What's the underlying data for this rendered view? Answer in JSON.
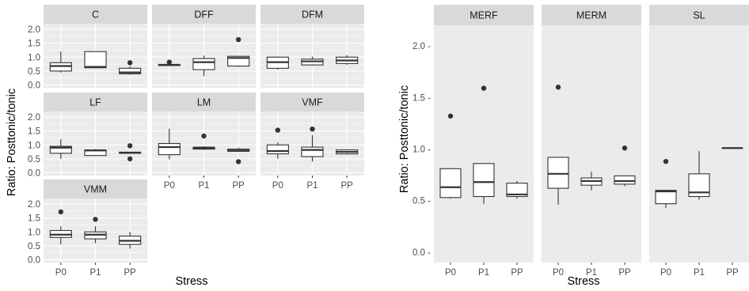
{
  "chart_data": [
    {
      "type": "boxplot",
      "facet": "wrap",
      "xlabel": "Stress",
      "ylabel": "Ratio: Posttonic/tonic",
      "categories": [
        "P0",
        "P1",
        "PP"
      ],
      "y_ticks": [
        0.0,
        0.5,
        1.0,
        1.5,
        2.0
      ],
      "y_tick_labels": [
        "0.0",
        "0.5",
        "1.0",
        "1.5",
        "2.0"
      ],
      "ylim": [
        -0.1,
        2.2
      ],
      "grid": true,
      "panels": [
        {
          "title": "C",
          "boxes": [
            {
              "category": "P0",
              "whisker_low": 0.45,
              "q1": 0.5,
              "median": 0.68,
              "q3": 0.8,
              "whisker_high": 1.2,
              "outliers": []
            },
            {
              "category": "P1",
              "whisker_low": 0.6,
              "q1": 0.62,
              "median": 0.65,
              "q3": 1.2,
              "whisker_high": 1.2,
              "outliers": []
            },
            {
              "category": "PP",
              "whisker_low": 0.37,
              "q1": 0.4,
              "median": 0.45,
              "q3": 0.6,
              "whisker_high": 0.67,
              "outliers": [
                0.8
              ]
            }
          ]
        },
        {
          "title": "DFF",
          "boxes": [
            {
              "category": "P0",
              "whisker_low": 0.68,
              "q1": 0.7,
              "median": 0.72,
              "q3": 0.74,
              "whisker_high": 0.76,
              "outliers": [
                0.82
              ]
            },
            {
              "category": "P1",
              "whisker_low": 0.32,
              "q1": 0.55,
              "median": 0.82,
              "q3": 0.95,
              "whisker_high": 1.05,
              "outliers": []
            },
            {
              "category": "PP",
              "whisker_low": 0.65,
              "q1": 0.68,
              "median": 0.97,
              "q3": 1.03,
              "whisker_high": 1.05,
              "outliers": [
                1.63
              ]
            }
          ]
        },
        {
          "title": "DFM",
          "boxes": [
            {
              "category": "P0",
              "whisker_low": 0.55,
              "q1": 0.6,
              "median": 0.82,
              "q3": 1.0,
              "whisker_high": 1.02,
              "outliers": []
            },
            {
              "category": "P1",
              "whisker_low": 0.7,
              "q1": 0.72,
              "median": 0.85,
              "q3": 0.93,
              "whisker_high": 1.02,
              "outliers": []
            },
            {
              "category": "PP",
              "whisker_low": 0.72,
              "q1": 0.77,
              "median": 0.88,
              "q3": 1.0,
              "whisker_high": 1.07,
              "outliers": []
            }
          ]
        },
        {
          "title": "LF",
          "boxes": [
            {
              "category": "P0",
              "whisker_low": 0.5,
              "q1": 0.7,
              "median": 0.9,
              "q3": 0.95,
              "whisker_high": 1.2,
              "outliers": []
            },
            {
              "category": "P1",
              "whisker_low": 0.6,
              "q1": 0.62,
              "median": 0.8,
              "q3": 0.82,
              "whisker_high": 0.85,
              "outliers": []
            },
            {
              "category": "PP",
              "whisker_low": 0.68,
              "q1": 0.7,
              "median": 0.72,
              "q3": 0.74,
              "whisker_high": 0.75,
              "outliers": [
                0.97,
                0.5
              ]
            }
          ]
        },
        {
          "title": "LM",
          "boxes": [
            {
              "category": "P0",
              "whisker_low": 0.48,
              "q1": 0.65,
              "median": 0.92,
              "q3": 1.05,
              "whisker_high": 1.58,
              "outliers": []
            },
            {
              "category": "P1",
              "whisker_low": 0.82,
              "q1": 0.85,
              "median": 0.88,
              "q3": 0.92,
              "whisker_high": 0.95,
              "outliers": [
                1.32
              ]
            },
            {
              "category": "PP",
              "whisker_low": 0.75,
              "q1": 0.77,
              "median": 0.8,
              "q3": 0.85,
              "whisker_high": 0.9,
              "outliers": [
                0.4
              ]
            }
          ]
        },
        {
          "title": "VMF",
          "boxes": [
            {
              "category": "P0",
              "whisker_low": 0.5,
              "q1": 0.68,
              "median": 0.78,
              "q3": 1.0,
              "whisker_high": 1.1,
              "outliers": [
                1.53
              ]
            },
            {
              "category": "P1",
              "whisker_low": 0.4,
              "q1": 0.58,
              "median": 0.82,
              "q3": 0.92,
              "whisker_high": 1.35,
              "outliers": [
                1.57
              ]
            },
            {
              "category": "PP",
              "whisker_low": 0.65,
              "q1": 0.68,
              "median": 0.75,
              "q3": 0.82,
              "whisker_high": 0.85,
              "outliers": []
            }
          ]
        },
        {
          "title": "VMM",
          "boxes": [
            {
              "category": "P0",
              "whisker_low": 0.55,
              "q1": 0.8,
              "median": 0.9,
              "q3": 1.05,
              "whisker_high": 1.2,
              "outliers": [
                1.72
              ]
            },
            {
              "category": "P1",
              "whisker_low": 0.6,
              "q1": 0.75,
              "median": 0.9,
              "q3": 1.0,
              "whisker_high": 1.2,
              "outliers": [
                1.45
              ]
            },
            {
              "category": "PP",
              "whisker_low": 0.4,
              "q1": 0.55,
              "median": 0.68,
              "q3": 0.85,
              "whisker_high": 1.0,
              "outliers": []
            }
          ]
        }
      ]
    },
    {
      "type": "boxplot",
      "facet": "grid",
      "xlabel": "Stress",
      "ylabel": "Ratio: Posttonic/tonic",
      "categories": [
        "P0",
        "P1",
        "PP"
      ],
      "y_ticks": [
        0.0,
        0.5,
        1.0,
        1.5,
        2.0
      ],
      "y_tick_labels": [
        "0.0 -",
        "0.5 -",
        "1.0 -",
        "1.5 -",
        "2.0 -"
      ],
      "ylim": [
        -0.1,
        2.2
      ],
      "grid": false,
      "panels": [
        {
          "title": "MERF",
          "boxes": [
            {
              "category": "P0",
              "whisker_low": 0.52,
              "q1": 0.53,
              "median": 0.63,
              "q3": 0.81,
              "whisker_high": 0.81,
              "outliers": [
                1.32
              ]
            },
            {
              "category": "P1",
              "whisker_low": 0.47,
              "q1": 0.54,
              "median": 0.68,
              "q3": 0.86,
              "whisker_high": 0.86,
              "outliers": [
                1.59
              ]
            },
            {
              "category": "PP",
              "whisker_low": 0.52,
              "q1": 0.54,
              "median": 0.56,
              "q3": 0.67,
              "whisker_high": 0.69,
              "outliers": []
            }
          ]
        },
        {
          "title": "MERM",
          "boxes": [
            {
              "category": "P0",
              "whisker_low": 0.46,
              "q1": 0.62,
              "median": 0.76,
              "q3": 0.92,
              "whisker_high": 0.92,
              "outliers": [
                1.6
              ]
            },
            {
              "category": "P1",
              "whisker_low": 0.6,
              "q1": 0.65,
              "median": 0.69,
              "q3": 0.72,
              "whisker_high": 0.78,
              "outliers": []
            },
            {
              "category": "PP",
              "whisker_low": 0.64,
              "q1": 0.66,
              "median": 0.69,
              "q3": 0.74,
              "whisker_high": 0.74,
              "outliers": [
                1.01
              ]
            }
          ]
        },
        {
          "title": "SL",
          "boxes": [
            {
              "category": "P0",
              "whisker_low": 0.43,
              "q1": 0.47,
              "median": 0.59,
              "q3": 0.6,
              "whisker_high": 0.6,
              "outliers": [
                0.88
              ]
            },
            {
              "category": "P1",
              "whisker_low": 0.51,
              "q1": 0.54,
              "median": 0.58,
              "q3": 0.76,
              "whisker_high": 0.98,
              "outliers": []
            },
            {
              "category": "PP",
              "whisker_low": 1.01,
              "q1": 1.01,
              "median": 1.01,
              "q3": 1.01,
              "whisker_high": 1.01,
              "outliers": []
            }
          ]
        }
      ]
    }
  ]
}
